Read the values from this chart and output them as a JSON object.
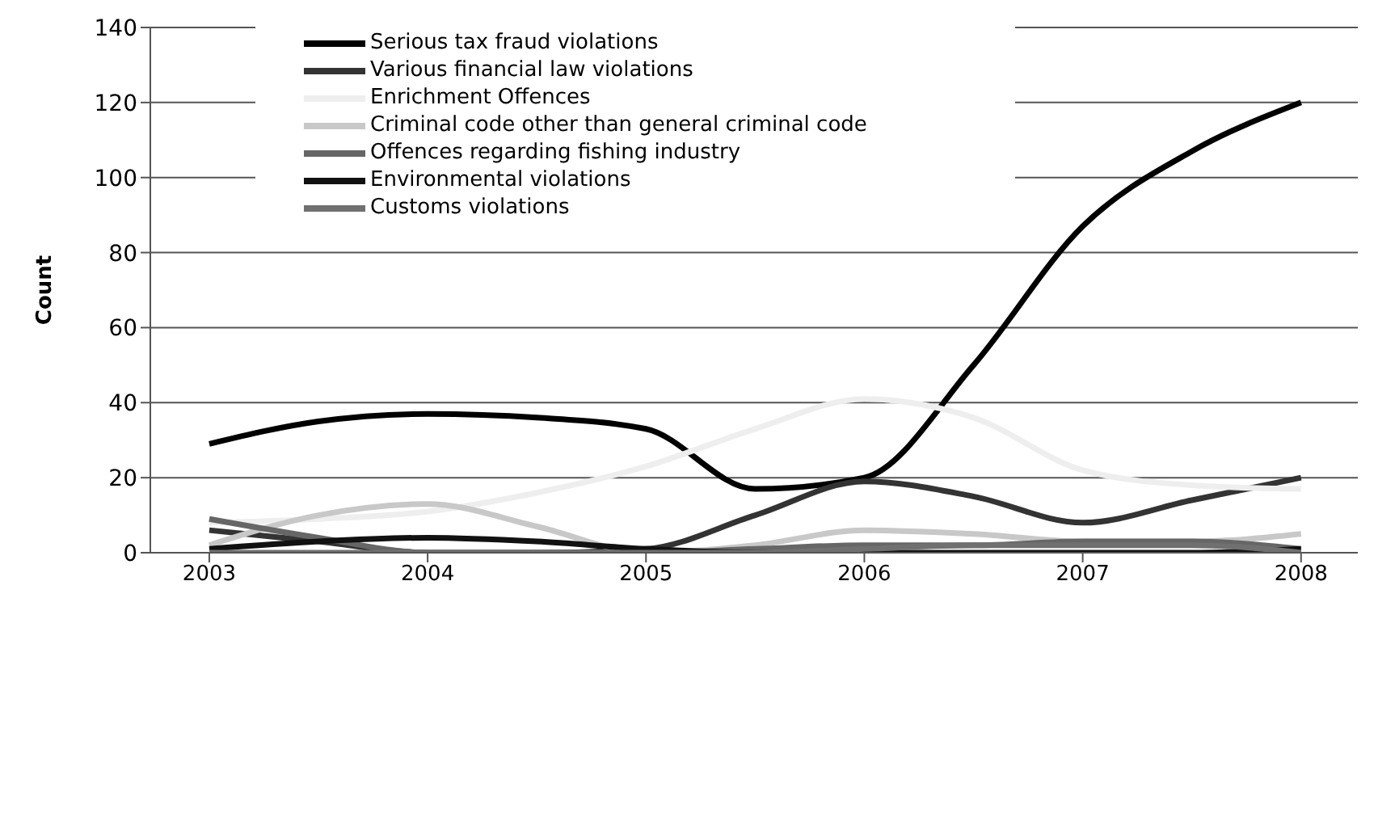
{
  "chart_data": {
    "type": "line",
    "ylabel": "Count",
    "x": [
      2003,
      2003.5,
      2004,
      2004.5,
      2005,
      2005.5,
      2006,
      2006.5,
      2007,
      2007.5,
      2008
    ],
    "xlim": [
      2002.73,
      2008.26
    ],
    "xticks": [
      2003,
      2004,
      2005,
      2006,
      2007,
      2008
    ],
    "ylim": [
      0,
      140
    ],
    "yticks": [
      0,
      20,
      40,
      60,
      80,
      100,
      120,
      140
    ],
    "grid": "y",
    "legend": "top",
    "marker": "none",
    "line_style": "solid",
    "series": [
      {
        "name": "Serious tax fraud violations",
        "color": "#000000",
        "values": [
          29,
          35,
          37,
          36,
          33,
          17,
          20,
          50,
          87,
          107,
          120
        ]
      },
      {
        "name": "Various financial law violations",
        "color": "#333333",
        "values": [
          6,
          3,
          0,
          0,
          1,
          10,
          19,
          15,
          8,
          14,
          20
        ]
      },
      {
        "name": "Enrichment Offences",
        "color": "#eeeeee",
        "values": [
          8,
          9,
          11,
          16,
          23,
          33,
          41,
          36,
          22,
          18,
          17
        ]
      },
      {
        "name": "Criminal code other than general criminal code",
        "color": "#c8c8c8",
        "values": [
          2,
          10,
          13,
          7,
          0,
          2,
          6,
          5,
          3,
          3,
          5
        ]
      },
      {
        "name": "Offences regarding fishing industry",
        "color": "#666666",
        "values": [
          9,
          4,
          0,
          0,
          0,
          1,
          2,
          2,
          3,
          3,
          1
        ]
      },
      {
        "name": "Environmental violations",
        "color": "#111111",
        "values": [
          1,
          3,
          4,
          3,
          1,
          0,
          0,
          0,
          0,
          0,
          1
        ]
      },
      {
        "name": "Customs violations",
        "color": "#707070",
        "values": [
          0,
          0,
          0,
          0,
          0,
          0,
          1,
          2,
          2,
          2,
          0
        ]
      }
    ]
  }
}
